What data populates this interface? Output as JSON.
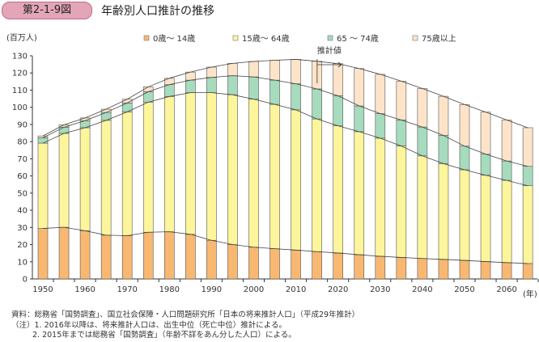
{
  "header": {
    "figure_no": "第2-1-9図",
    "title": "年齢別人口推計の推移"
  },
  "chart_data": {
    "type": "bar",
    "stacked": true,
    "ylabel": "(百万人)",
    "xlabel": "(年)",
    "ylim": [
      0,
      130
    ],
    "yticks": [
      0,
      10,
      20,
      30,
      40,
      50,
      60,
      70,
      80,
      90,
      100,
      110,
      120,
      130
    ],
    "xtick_labels": [
      "1950",
      "1960",
      "1970",
      "1980",
      "1990",
      "2000",
      "2010",
      "2020",
      "2030",
      "2040",
      "2050",
      "2060"
    ],
    "categories": [
      1950,
      1955,
      1960,
      1965,
      1970,
      1975,
      1980,
      1985,
      1990,
      1995,
      2000,
      2005,
      2010,
      2015,
      2020,
      2025,
      2030,
      2035,
      2040,
      2045,
      2050,
      2055,
      2060,
      2065
    ],
    "legend_position": "top",
    "series": [
      {
        "name": "0歳～ 14歳",
        "color": "#f8b872",
        "values": [
          29.4,
          30.1,
          28.1,
          25.5,
          25.2,
          27.2,
          27.5,
          26.0,
          22.5,
          20.0,
          18.5,
          17.6,
          16.8,
          15.9,
          15.1,
          14.1,
          13.2,
          12.5,
          11.9,
          11.4,
          10.8,
          10.1,
          9.5,
          9.0
        ]
      },
      {
        "name": "15歳～ 64歳",
        "color": "#fdf59c",
        "values": [
          49.7,
          54.7,
          60.0,
          66.9,
          72.1,
          75.8,
          78.8,
          82.5,
          86.0,
          87.3,
          86.2,
          84.1,
          81.7,
          77.3,
          74.1,
          71.7,
          68.8,
          64.9,
          59.8,
          55.8,
          52.8,
          50.3,
          47.9,
          45.3
        ]
      },
      {
        "name": "65 ～ 74歳",
        "color": "#a6dbbd",
        "values": [
          3.1,
          3.6,
          4.1,
          4.6,
          5.2,
          6.1,
          6.9,
          7.3,
          8.9,
          11.1,
          13.0,
          14.1,
          15.2,
          17.5,
          17.5,
          15.0,
          14.3,
          15.2,
          16.8,
          16.4,
          13.8,
          12.3,
          11.3,
          11.3
        ]
      },
      {
        "name": "75歳以上",
        "color": "#fde4c9",
        "values": [
          1.1,
          1.4,
          1.6,
          1.9,
          2.2,
          2.8,
          3.7,
          4.7,
          6.0,
          7.2,
          9.0,
          11.6,
          14.2,
          16.1,
          18.7,
          21.8,
          22.9,
          22.6,
          22.4,
          22.8,
          24.2,
          24.5,
          23.9,
          22.5
        ]
      }
    ],
    "annotations": [
      {
        "text": "推計値",
        "from_year": 2016
      }
    ]
  },
  "notes": [
    "資料：総務省「国勢調査」、国立社会保障・人口問題研究所「日本の将来推計人口」（平成29年推計）",
    "（注）1. 2016年以降は、将来推計人口は、出生中位（死亡中位）推計による。",
    "2. 2015年までは総務省「国勢調査」（年齢不詳をあん分した人口）による。"
  ]
}
